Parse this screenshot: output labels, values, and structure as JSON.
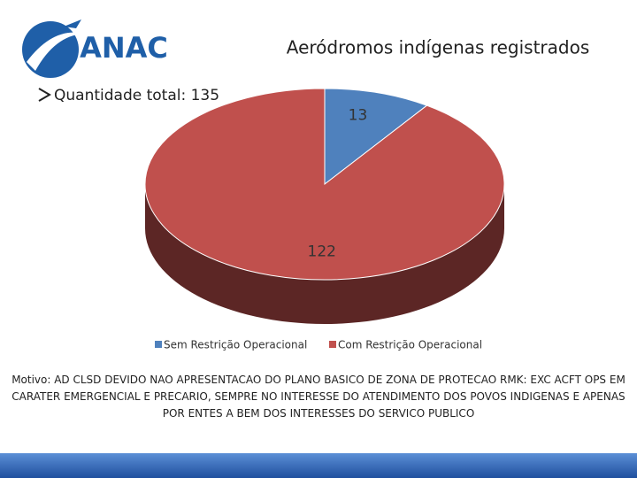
{
  "logo": "ANAC",
  "bullet": "Quantidade total: 135",
  "note": "Motivo: AD CLSD DEVIDO NAO APRESENTACAO DO PLANO BASICO DE ZONA DE PROTECAO RMK: EXC ACFT OPS EM CARATER EMERGENCIAL E PRECARIO, SEMPRE NO INTERESSE DO ATENDIMENTO DOS POVOS INDIGENAS E APENAS POR ENTES A BEM DOS INTERESSES DO SERVICO PUBLICO",
  "chart_data": {
    "type": "pie",
    "title": "Aeródromos indígenas registrados",
    "categories": [
      "Sem Restrição Operacional",
      "Com Restrição Operacional"
    ],
    "values": [
      13,
      122
    ],
    "colors": [
      "#4f81bd",
      "#c0504d"
    ]
  }
}
